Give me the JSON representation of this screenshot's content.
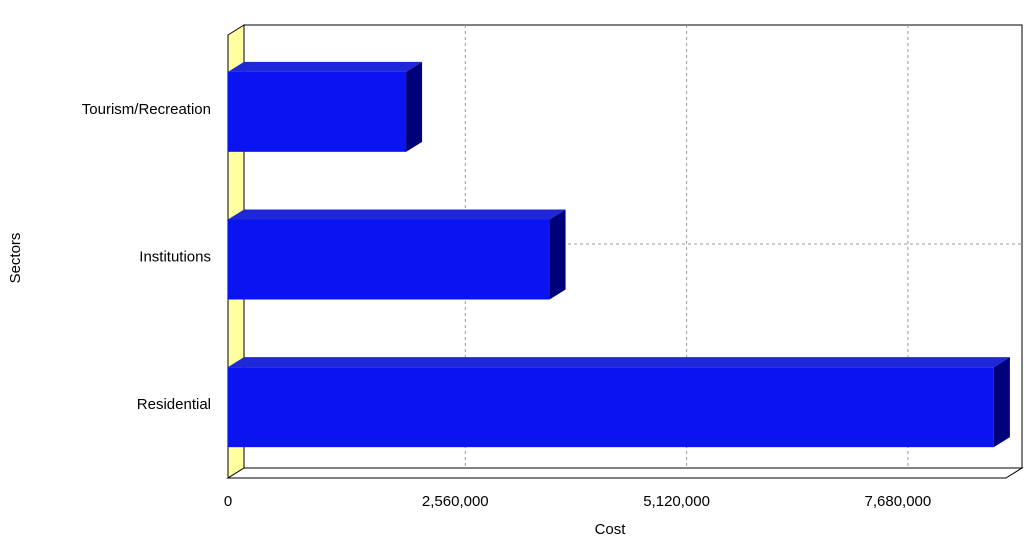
{
  "chart_data": {
    "type": "bar",
    "orientation": "horizontal",
    "categories": [
      "Tourism/Recreation",
      "Institutions",
      "Residential"
    ],
    "values": [
      2060000,
      3720000,
      8860000
    ],
    "xlabel": "Cost",
    "ylabel": "Sectors",
    "xlim": [
      0,
      9000000
    ],
    "xticks": [
      0,
      2560000,
      5120000,
      7680000
    ],
    "xtick_labels": [
      "0",
      "2,560,000",
      "5,120,000",
      "7,680,000"
    ],
    "grid": true,
    "legend": "none",
    "colors": {
      "bar_front": "#0a14f0",
      "bar_top": "#1e28d8",
      "bar_side": "#00007a",
      "floor": "#ffffa0",
      "grid": "#9a9a9a"
    }
  }
}
